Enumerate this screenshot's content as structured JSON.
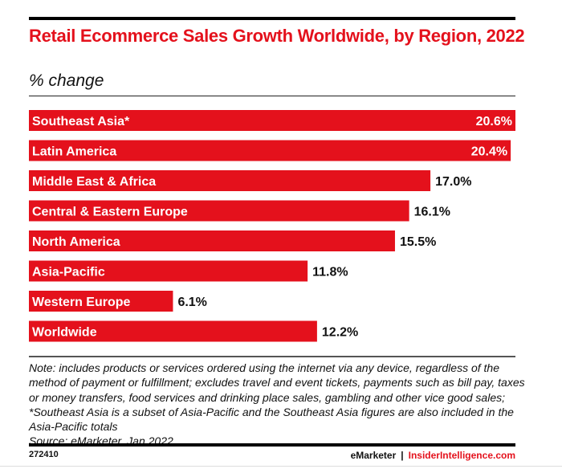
{
  "colors": {
    "bar": "#e4111c",
    "accent": "#e4111c"
  },
  "chart_data": {
    "type": "bar",
    "orientation": "horizontal",
    "title": "Retail Ecommerce Sales Growth Worldwide, by Region, 2022",
    "subtitle": "% change",
    "categories": [
      "Southeast Asia*",
      "Latin America",
      "Middle East & Africa",
      "Central & Eastern Europe",
      "North America",
      "Asia-Pacific",
      "Western Europe",
      "Worldwide"
    ],
    "values": [
      20.6,
      20.4,
      17.0,
      16.1,
      15.5,
      11.8,
      6.1,
      12.2
    ],
    "labels": [
      "20.6%",
      "20.4%",
      "17.0%",
      "16.1%",
      "15.5%",
      "11.8%",
      "6.1%",
      "12.2%"
    ],
    "xlim": [
      0,
      20.6
    ],
    "grid": false,
    "legend": "none"
  },
  "note": "Note: includes products or services ordered using the internet via any device, regardless of the method of payment or fulfillment; excludes travel and event tickets, payments such as bill pay, taxes or money transfers, food services and drinking place sales, gambling and other vice good sales; *Southeast Asia is a subset of Asia-Pacific and the Southeast Asia figures are also included in the Asia-Pacific totals",
  "source": "Source: eMarketer, Jan 2022",
  "footer": {
    "chart_id": "272410",
    "brand1": "eMarketer",
    "separator": "|",
    "brand2": "InsiderIntelligence.com"
  }
}
